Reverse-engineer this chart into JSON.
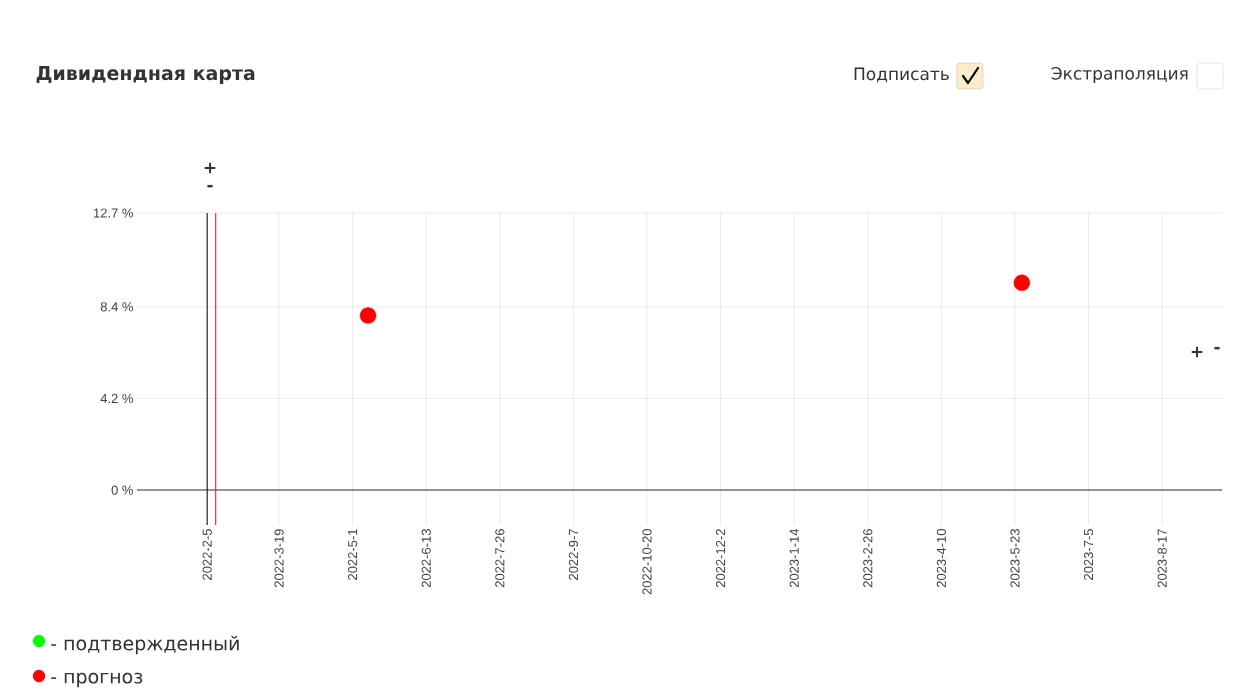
{
  "chart_data": {
    "type": "scatter",
    "title": "Дивидендная карта",
    "annotations": [
      "Подписать",
      "Экстраполяция",
      "+",
      "-",
      "+",
      "-"
    ],
    "xlim": [
      "2021-12-26",
      "2023-09-21"
    ],
    "xticks": [
      {
        "value": "2022-02-05",
        "label": "2022-2-5"
      },
      {
        "value": "2022-03-19",
        "label": "2022-3-19"
      },
      {
        "value": "2022-05-01",
        "label": "2022-5-1"
      },
      {
        "value": "2022-06-13",
        "label": "2022-6-13"
      },
      {
        "value": "2022-07-26",
        "label": "2022-7-26"
      },
      {
        "value": "2022-09-07",
        "label": "2022-9-7"
      },
      {
        "value": "2022-10-20",
        "label": "2022-10-20"
      },
      {
        "value": "2022-12-02",
        "label": "2022-12-2"
      },
      {
        "value": "2023-01-14",
        "label": "2023-1-14"
      },
      {
        "value": "2023-02-26",
        "label": "2023-2-26"
      },
      {
        "value": "2023-04-10",
        "label": "2023-4-10"
      },
      {
        "value": "2023-05-23",
        "label": "2023-5-23"
      },
      {
        "value": "2023-07-05",
        "label": "2023-7-5"
      },
      {
        "value": "2023-08-17",
        "label": "2023-8-17"
      }
    ],
    "ylim": [
      -1.6,
      12.7
    ],
    "yticks": [
      {
        "value": 0,
        "label": "0 %"
      },
      {
        "value": 4.2,
        "label": "4.2 %"
      },
      {
        "value": 8.4,
        "label": "8.4 %"
      },
      {
        "value": 12.7,
        "label": "12.7 %"
      }
    ],
    "x": [
      "2022-05-10",
      "2023-05-27"
    ],
    "series": [
      {
        "name": "- подтвержденный",
        "color": "#00ff00",
        "values": [
          null,
          null
        ]
      },
      {
        "name": "- прогноз",
        "color": "#ff0000",
        "values": [
          8.0,
          9.5
        ]
      }
    ],
    "ref_lines": [
      {
        "axis": "x",
        "value": "2022-02-05",
        "color": "#000000"
      },
      {
        "axis": "x",
        "value": "2022-02-10",
        "color": "#ff0000"
      }
    ],
    "grid": true,
    "legend": "bottom left",
    "marker": "circle"
  }
}
